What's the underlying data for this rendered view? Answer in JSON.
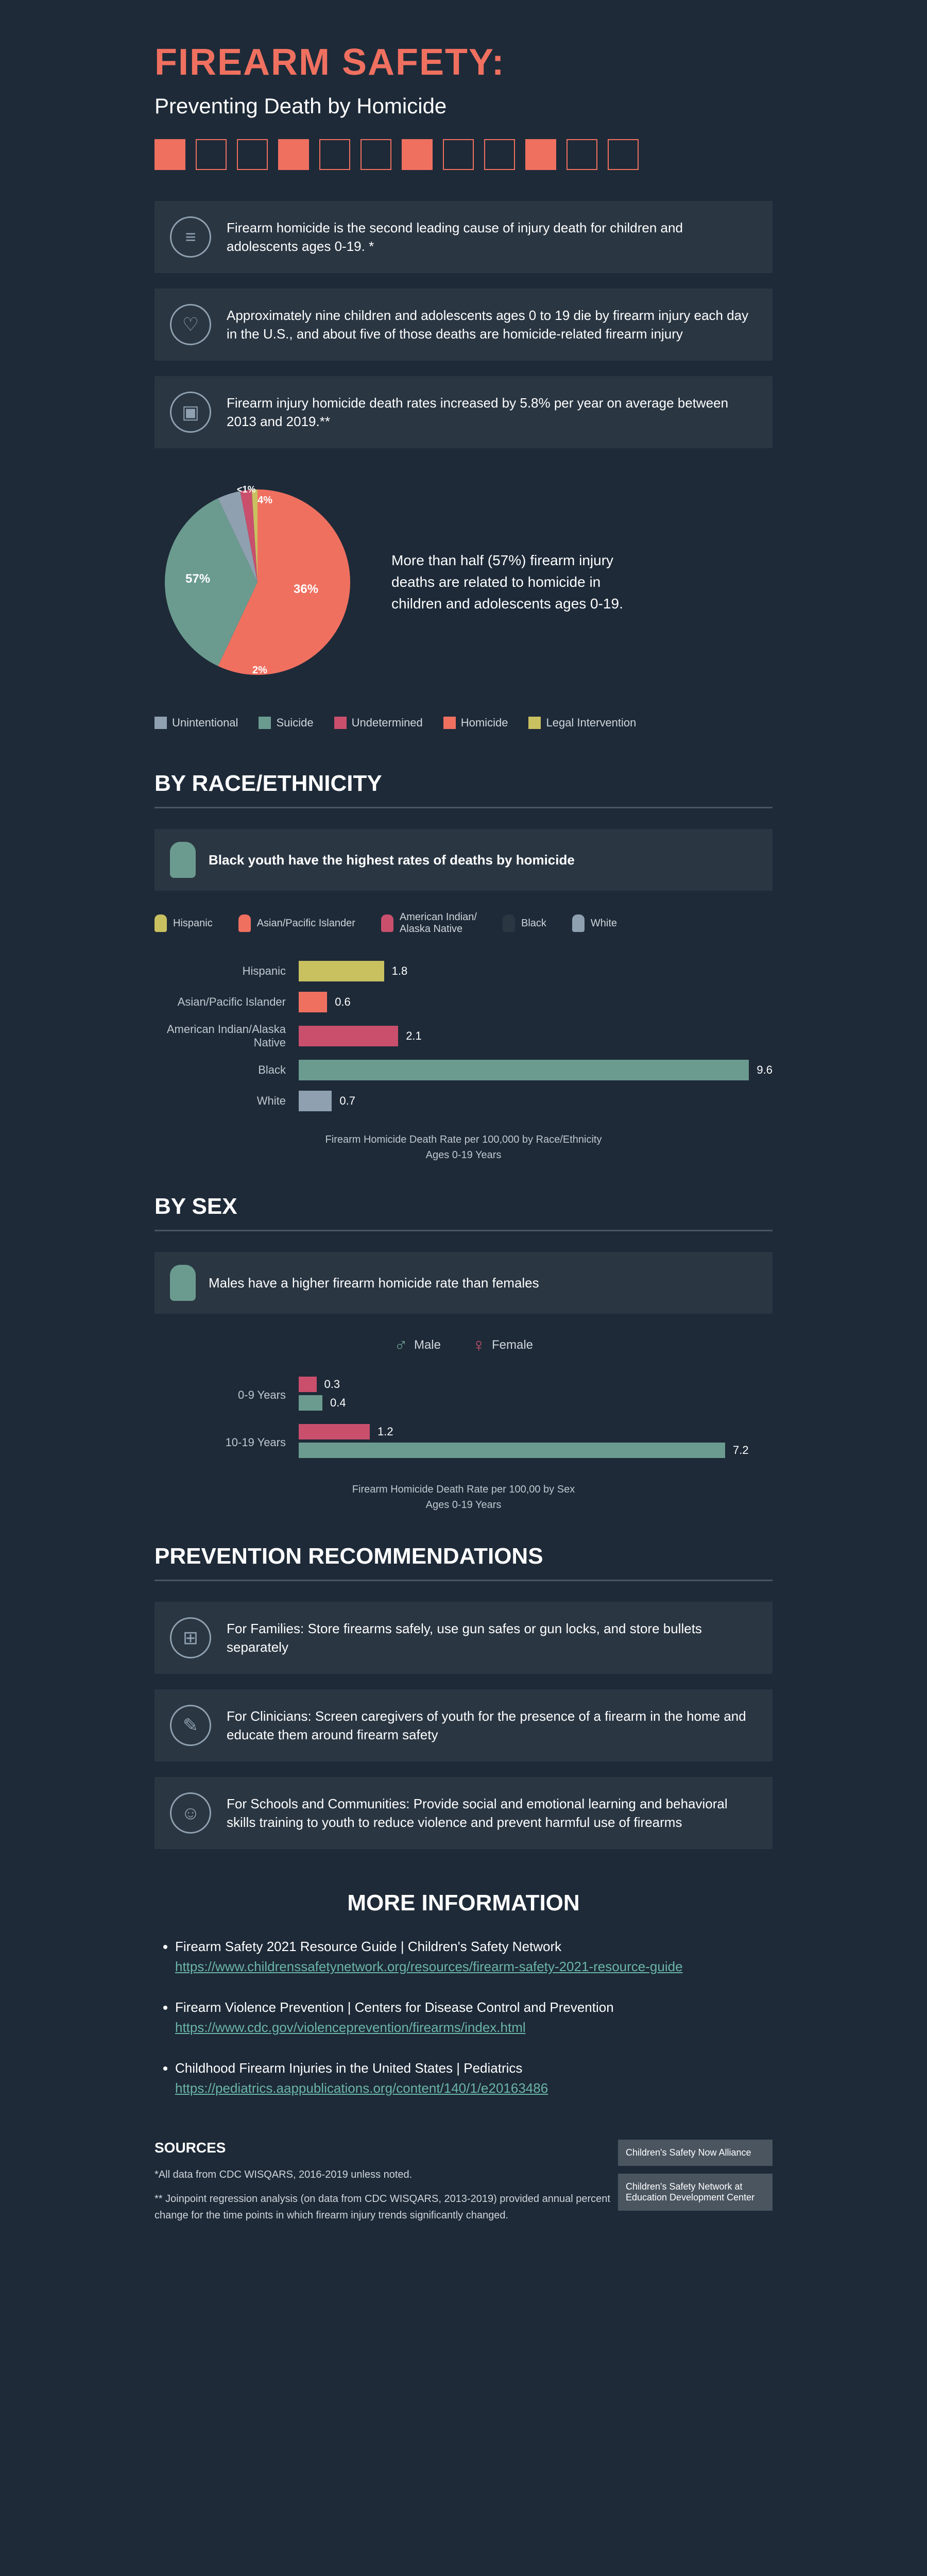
{
  "title": "FIREARM SAFETY:",
  "subtitle": "Preventing Death by Homicide",
  "facts": [
    {
      "icon": "≡",
      "text": "Firearm homicide is the second leading cause of injury death for children and adolescents ages 0-19. *"
    },
    {
      "icon": "♡",
      "text": "Approximately nine children and adolescents ages 0 to 19 die by firearm injury each day in the U.S., and about five of those deaths are homicide-related firearm injury"
    },
    {
      "icon": "▣",
      "text": "Firearm injury homicide death rates increased by 5.8% per year on average between 2013 and 2019.**"
    }
  ],
  "pie": {
    "slices": [
      {
        "label": "Homicide",
        "value": 57,
        "color": "#f07060"
      },
      {
        "label": "Suicide",
        "value": 36,
        "color": "#6b9b8f"
      },
      {
        "label": "Unintentional",
        "value": 4,
        "color": "#8fa0b0"
      },
      {
        "label": "Undetermined",
        "value": 2,
        "color": "#c94f6d"
      },
      {
        "label": "Legal Intervention",
        "value": 1,
        "color": "#c9c060"
      }
    ],
    "text": "More than half (57%) firearm injury deaths are related to homicide in children and adolescents ages 0-19.",
    "labels": {
      "p57": "57%",
      "p36": "36%",
      "p4": "4%",
      "p2": "2%",
      "p1": "<1%"
    }
  },
  "legend_items": [
    {
      "label": "Unintentional",
      "color": "#8fa0b0"
    },
    {
      "label": "Suicide",
      "color": "#6b9b8f"
    },
    {
      "label": "Undetermined",
      "color": "#c94f6d"
    },
    {
      "label": "Homicide",
      "color": "#f07060"
    },
    {
      "label": "Legal Intervention",
      "color": "#c9c060"
    }
  ],
  "race": {
    "heading": "BY RACE/ETHNICITY",
    "callout": "Black youth have the highest rates of deaths by homicide",
    "legend": [
      {
        "label": "Hispanic",
        "color": "#c9c060"
      },
      {
        "label": "Asian/Pacific Islander",
        "color": "#f07060"
      },
      {
        "label": "American Indian/\nAlaska Native",
        "color": "#c94f6d"
      },
      {
        "label": "Black",
        "color": "#2a3642"
      },
      {
        "label": "White",
        "color": "#8fa0b0"
      }
    ],
    "bars": [
      {
        "label": "Hispanic",
        "value": 1.8,
        "color": "#c9c060"
      },
      {
        "label": "Asian/Pacific Islander",
        "value": 0.6,
        "color": "#f07060"
      },
      {
        "label": "American Indian/Alaska Native",
        "value": 2.1,
        "color": "#c94f6d"
      },
      {
        "label": "Black",
        "value": 9.6,
        "color": "#6b9b8f"
      },
      {
        "label": "White",
        "value": 0.7,
        "color": "#8fa0b0"
      }
    ],
    "max": 10,
    "caption": "Firearm Homicide Death Rate per 100,000 by Race/Ethnicity\nAges 0-19 Years"
  },
  "sex": {
    "heading": "BY SEX",
    "callout": "Males have a higher firearm homicide rate than females",
    "legend": [
      {
        "label": "Male",
        "color": "#6b9b8f",
        "symbol": "♂"
      },
      {
        "label": "Female",
        "color": "#c94f6d",
        "symbol": "♀"
      }
    ],
    "groups": [
      {
        "label": "0-9 Years",
        "bars": [
          {
            "value": 0.3,
            "color": "#c94f6d"
          },
          {
            "value": 0.4,
            "color": "#6b9b8f"
          }
        ]
      },
      {
        "label": "10-19 Years",
        "bars": [
          {
            "value": 1.2,
            "color": "#c94f6d"
          },
          {
            "value": 7.2,
            "color": "#6b9b8f"
          }
        ]
      }
    ],
    "max": 8,
    "caption": "Firearm Homicide Death Rate per 100,00 by Sex\nAges 0-19 Years"
  },
  "prevention": {
    "heading": "PREVENTION RECOMMENDATIONS",
    "items": [
      {
        "icon": "⊞",
        "text": "For Families: Store firearms safely, use gun safes or gun locks, and store bullets separately"
      },
      {
        "icon": "✎",
        "text": "For Clinicians: Screen caregivers of youth for the presence of a firearm in the home and educate them around firearm safety"
      },
      {
        "icon": "☺",
        "text": "For Schools and Communities: Provide social and emotional learning and behavioral skills training to youth to reduce violence and prevent harmful use of firearms"
      }
    ]
  },
  "more": {
    "heading": "MORE INFORMATION",
    "items": [
      {
        "title": "Firearm Safety 2021 Resource Guide | Children's Safety Network",
        "url": "https://www.childrenssafetynetwork.org/resources/firearm-safety-2021-resource-guide"
      },
      {
        "title": "Firearm Violence Prevention | Centers for Disease Control and Prevention",
        "url": "https://www.cdc.gov/violenceprevention/firearms/index.html"
      },
      {
        "title": "Childhood Firearm Injuries in the United States | Pediatrics",
        "url": "https://pediatrics.aappublications.org/content/140/1/e20163486"
      }
    ]
  },
  "sources": {
    "heading": "SOURCES",
    "lines": [
      "*All data from CDC WISQARS, 2016-2019 unless noted.",
      "** Joinpoint regression analysis (on data from CDC WISQARS, 2013-2019) provided annual percent change for the time points in which firearm injury trends significantly changed."
    ],
    "logos": [
      "Children's Safety Now Alliance",
      "Children's Safety Network at Education Development Center"
    ]
  }
}
